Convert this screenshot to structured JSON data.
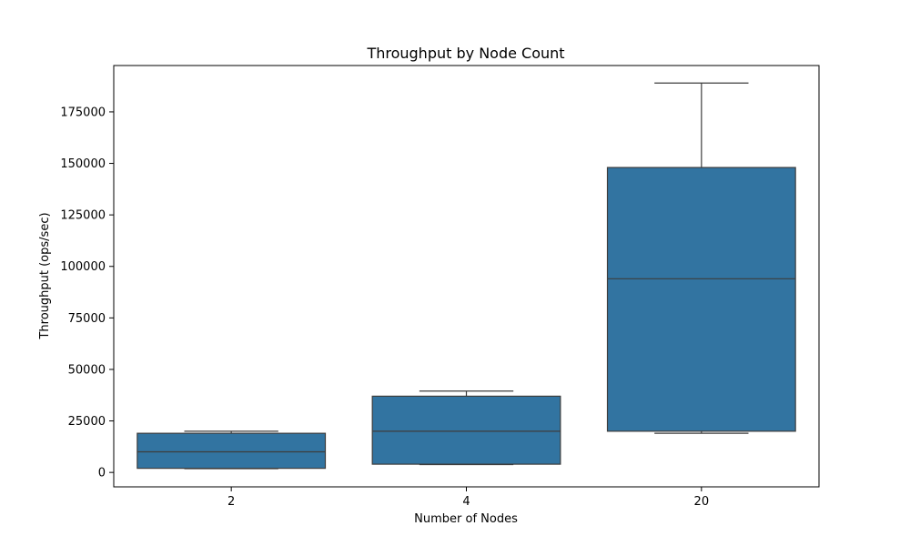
{
  "chart_data": {
    "type": "box",
    "title": "Throughput by Node Count",
    "xlabel": "Number of Nodes",
    "ylabel": "Throughput (ops/sec)",
    "categories": [
      "2",
      "4",
      "20"
    ],
    "ylim": [
      -7000,
      197500
    ],
    "yticks": [
      0,
      25000,
      50000,
      75000,
      100000,
      125000,
      150000,
      175000
    ],
    "boxes": [
      {
        "category": "2",
        "whisker_low": 1800,
        "q1": 2000,
        "median": 10000,
        "q3": 19000,
        "whisker_high": 20000
      },
      {
        "category": "4",
        "whisker_low": 3800,
        "q1": 4000,
        "median": 20000,
        "q3": 37000,
        "whisker_high": 39500
      },
      {
        "category": "20",
        "whisker_low": 19000,
        "q1": 20000,
        "median": 94000,
        "q3": 148000,
        "whisker_high": 189000
      }
    ],
    "box_color": "#3274a1",
    "line_color": "#3d3d3d",
    "grid": false,
    "legend": "none"
  }
}
